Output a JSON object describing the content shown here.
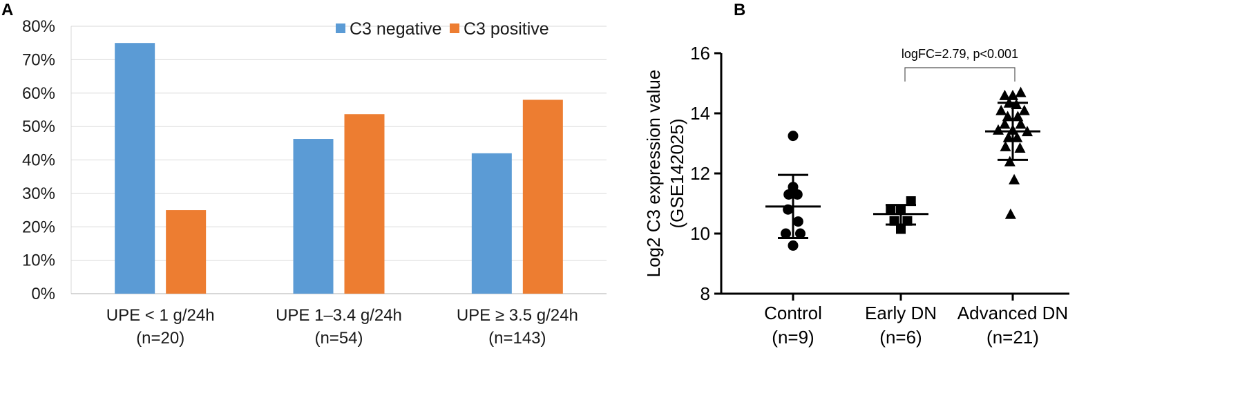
{
  "figure": {
    "panel_a_label": "A",
    "panel_b_label": "B"
  },
  "chart_data": [
    {
      "id": "panel-a",
      "type": "bar",
      "title": "",
      "xlabel": "",
      "ylabel": "",
      "ylim": [
        0,
        80
      ],
      "yticks": [
        "0%",
        "10%",
        "20%",
        "30%",
        "40%",
        "50%",
        "60%",
        "70%",
        "80%"
      ],
      "ytick_values": [
        0,
        10,
        20,
        30,
        40,
        50,
        60,
        70,
        80
      ],
      "grid": true,
      "legend_position": "top-right",
      "categories": [
        {
          "line1": "UPE < 1 g/24h",
          "line2": "(n=20)"
        },
        {
          "line1": "UPE 1–3.4 g/24h",
          "line2": "(n=54)"
        },
        {
          "line1": "UPE ≥ 3.5 g/24h",
          "line2": "(n=143)"
        }
      ],
      "series": [
        {
          "name": "C3 negative",
          "color": "#5b9bd5",
          "values": [
            75,
            46.3,
            42
          ]
        },
        {
          "name": "C3 positive",
          "color": "#ed7d31",
          "values": [
            25,
            53.7,
            58
          ]
        }
      ]
    },
    {
      "id": "panel-b",
      "type": "scatter",
      "title": "",
      "ylabel_line1": "Log2 C3 expression value",
      "ylabel_line2": "(GSE142025)",
      "ylim": [
        8,
        16
      ],
      "yticks": [
        "8",
        "10",
        "12",
        "14",
        "16"
      ],
      "ytick_values": [
        8,
        10,
        12,
        14,
        16
      ],
      "annotation": "logFC=2.79, p<0.001",
      "comparison": [
        "Early DN",
        "Advanced DN"
      ],
      "groups": [
        {
          "name": "Control",
          "n_label": "(n=9)",
          "marker": "circle",
          "mean": 10.9,
          "sd_low": 9.85,
          "sd_high": 11.95,
          "points": [
            [
              0,
              13.25
            ],
            [
              -0.3,
              11.3
            ],
            [
              0.3,
              11.3
            ],
            [
              0,
              11.55
            ],
            [
              -0.35,
              10.8
            ],
            [
              0.35,
              10.4
            ],
            [
              -0.5,
              10.0
            ],
            [
              0.5,
              10.0
            ],
            [
              0,
              9.6
            ]
          ]
        },
        {
          "name": "Early DN",
          "n_label": "(n=6)",
          "marker": "square",
          "mean": 10.65,
          "sd_low": 10.3,
          "sd_high": 10.95,
          "points": [
            [
              -0.7,
              10.8
            ],
            [
              0,
              10.8
            ],
            [
              0.7,
              11.08
            ],
            [
              -0.45,
              10.42
            ],
            [
              0.45,
              10.42
            ],
            [
              0,
              10.15
            ]
          ]
        },
        {
          "name": "Advanced DN",
          "n_label": "(n=21)",
          "marker": "triangle",
          "mean": 13.4,
          "sd_low": 12.45,
          "sd_high": 14.35,
          "points": [
            [
              -0.55,
              14.6
            ],
            [
              0,
              14.6
            ],
            [
              0.55,
              14.7
            ],
            [
              -0.25,
              14.35
            ],
            [
              0.25,
              14.3
            ],
            [
              -0.8,
              14.1
            ],
            [
              0.8,
              14.1
            ],
            [
              -0.35,
              13.9
            ],
            [
              0.35,
              13.9
            ],
            [
              -0.55,
              13.65
            ],
            [
              0.55,
              13.65
            ],
            [
              -1.0,
              13.45
            ],
            [
              0,
              13.45
            ],
            [
              1.0,
              13.4
            ],
            [
              -0.3,
              13.2
            ],
            [
              0.3,
              13.2
            ],
            [
              -0.5,
              12.9
            ],
            [
              0.5,
              12.85
            ],
            [
              -0.2,
              12.4
            ],
            [
              0.1,
              11.8
            ],
            [
              -0.15,
              10.65
            ]
          ]
        }
      ]
    }
  ]
}
